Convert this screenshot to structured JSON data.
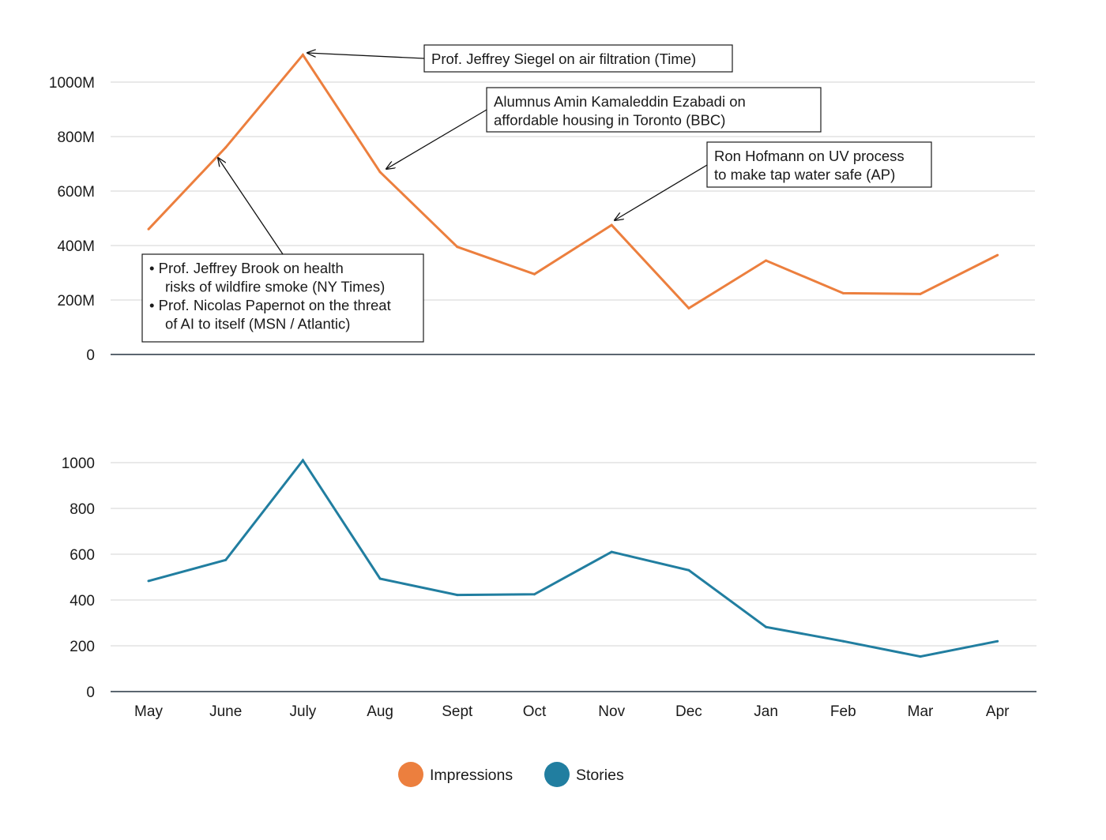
{
  "chart_data": [
    {
      "type": "line",
      "categories": [
        "May",
        "June",
        "July",
        "Aug",
        "Sept",
        "Oct",
        "Nov",
        "Dec",
        "Jan",
        "Feb",
        "Mar",
        "Apr"
      ],
      "series": [
        {
          "name": "Impressions",
          "color": "#ec7f3e",
          "values": [
            460,
            760,
            1100,
            670,
            395,
            295,
            475,
            170,
            345,
            225,
            222,
            365
          ]
        }
      ],
      "ylim": [
        0,
        1100
      ],
      "yticks": [
        0,
        200,
        400,
        600,
        800,
        1000
      ],
      "ytick_labels": [
        "0",
        "200M",
        "400M",
        "600M",
        "800M",
        "1000M"
      ],
      "grid": true,
      "annotations": [
        {
          "lines": [
            "Prof. Jeffrey Siegel on air filtration (Time)"
          ],
          "point_index": 2
        },
        {
          "lines": [
            "Alumnus Amin Kamaleddin Ezabadi on",
            "affordable housing in Toronto (BBC)"
          ],
          "point_index": 3
        },
        {
          "lines": [
            "Ron Hofmann on UV process",
            "to make tap water safe (AP)"
          ],
          "point_index": 6
        },
        {
          "lines": [
            "• Prof. Jeffrey Brook on health",
            "risks of wildfire smoke (NY Times)",
            "• Prof. Nicolas Papernot on the threat",
            "of AI to itself (MSN / Atlantic)"
          ],
          "point_index": 1
        }
      ]
    },
    {
      "type": "line",
      "categories": [
        "May",
        "June",
        "July",
        "Aug",
        "Sept",
        "Oct",
        "Nov",
        "Dec",
        "Jan",
        "Feb",
        "Mar",
        "Apr"
      ],
      "series": [
        {
          "name": "Stories",
          "color": "#217ea0",
          "values": [
            483,
            575,
            1010,
            493,
            422,
            425,
            610,
            530,
            282,
            220,
            153,
            220
          ]
        }
      ],
      "ylim": [
        0,
        1000
      ],
      "yticks": [
        0,
        200,
        400,
        600,
        800,
        1000
      ],
      "ytick_labels": [
        "0",
        "200",
        "400",
        "600",
        "800",
        "1000"
      ],
      "grid": true
    }
  ],
  "legend": {
    "placement": "bottom-center",
    "items": [
      {
        "label": "Impressions",
        "color": "#ec7f3e"
      },
      {
        "label": "Stories",
        "color": "#217ea0"
      }
    ]
  }
}
